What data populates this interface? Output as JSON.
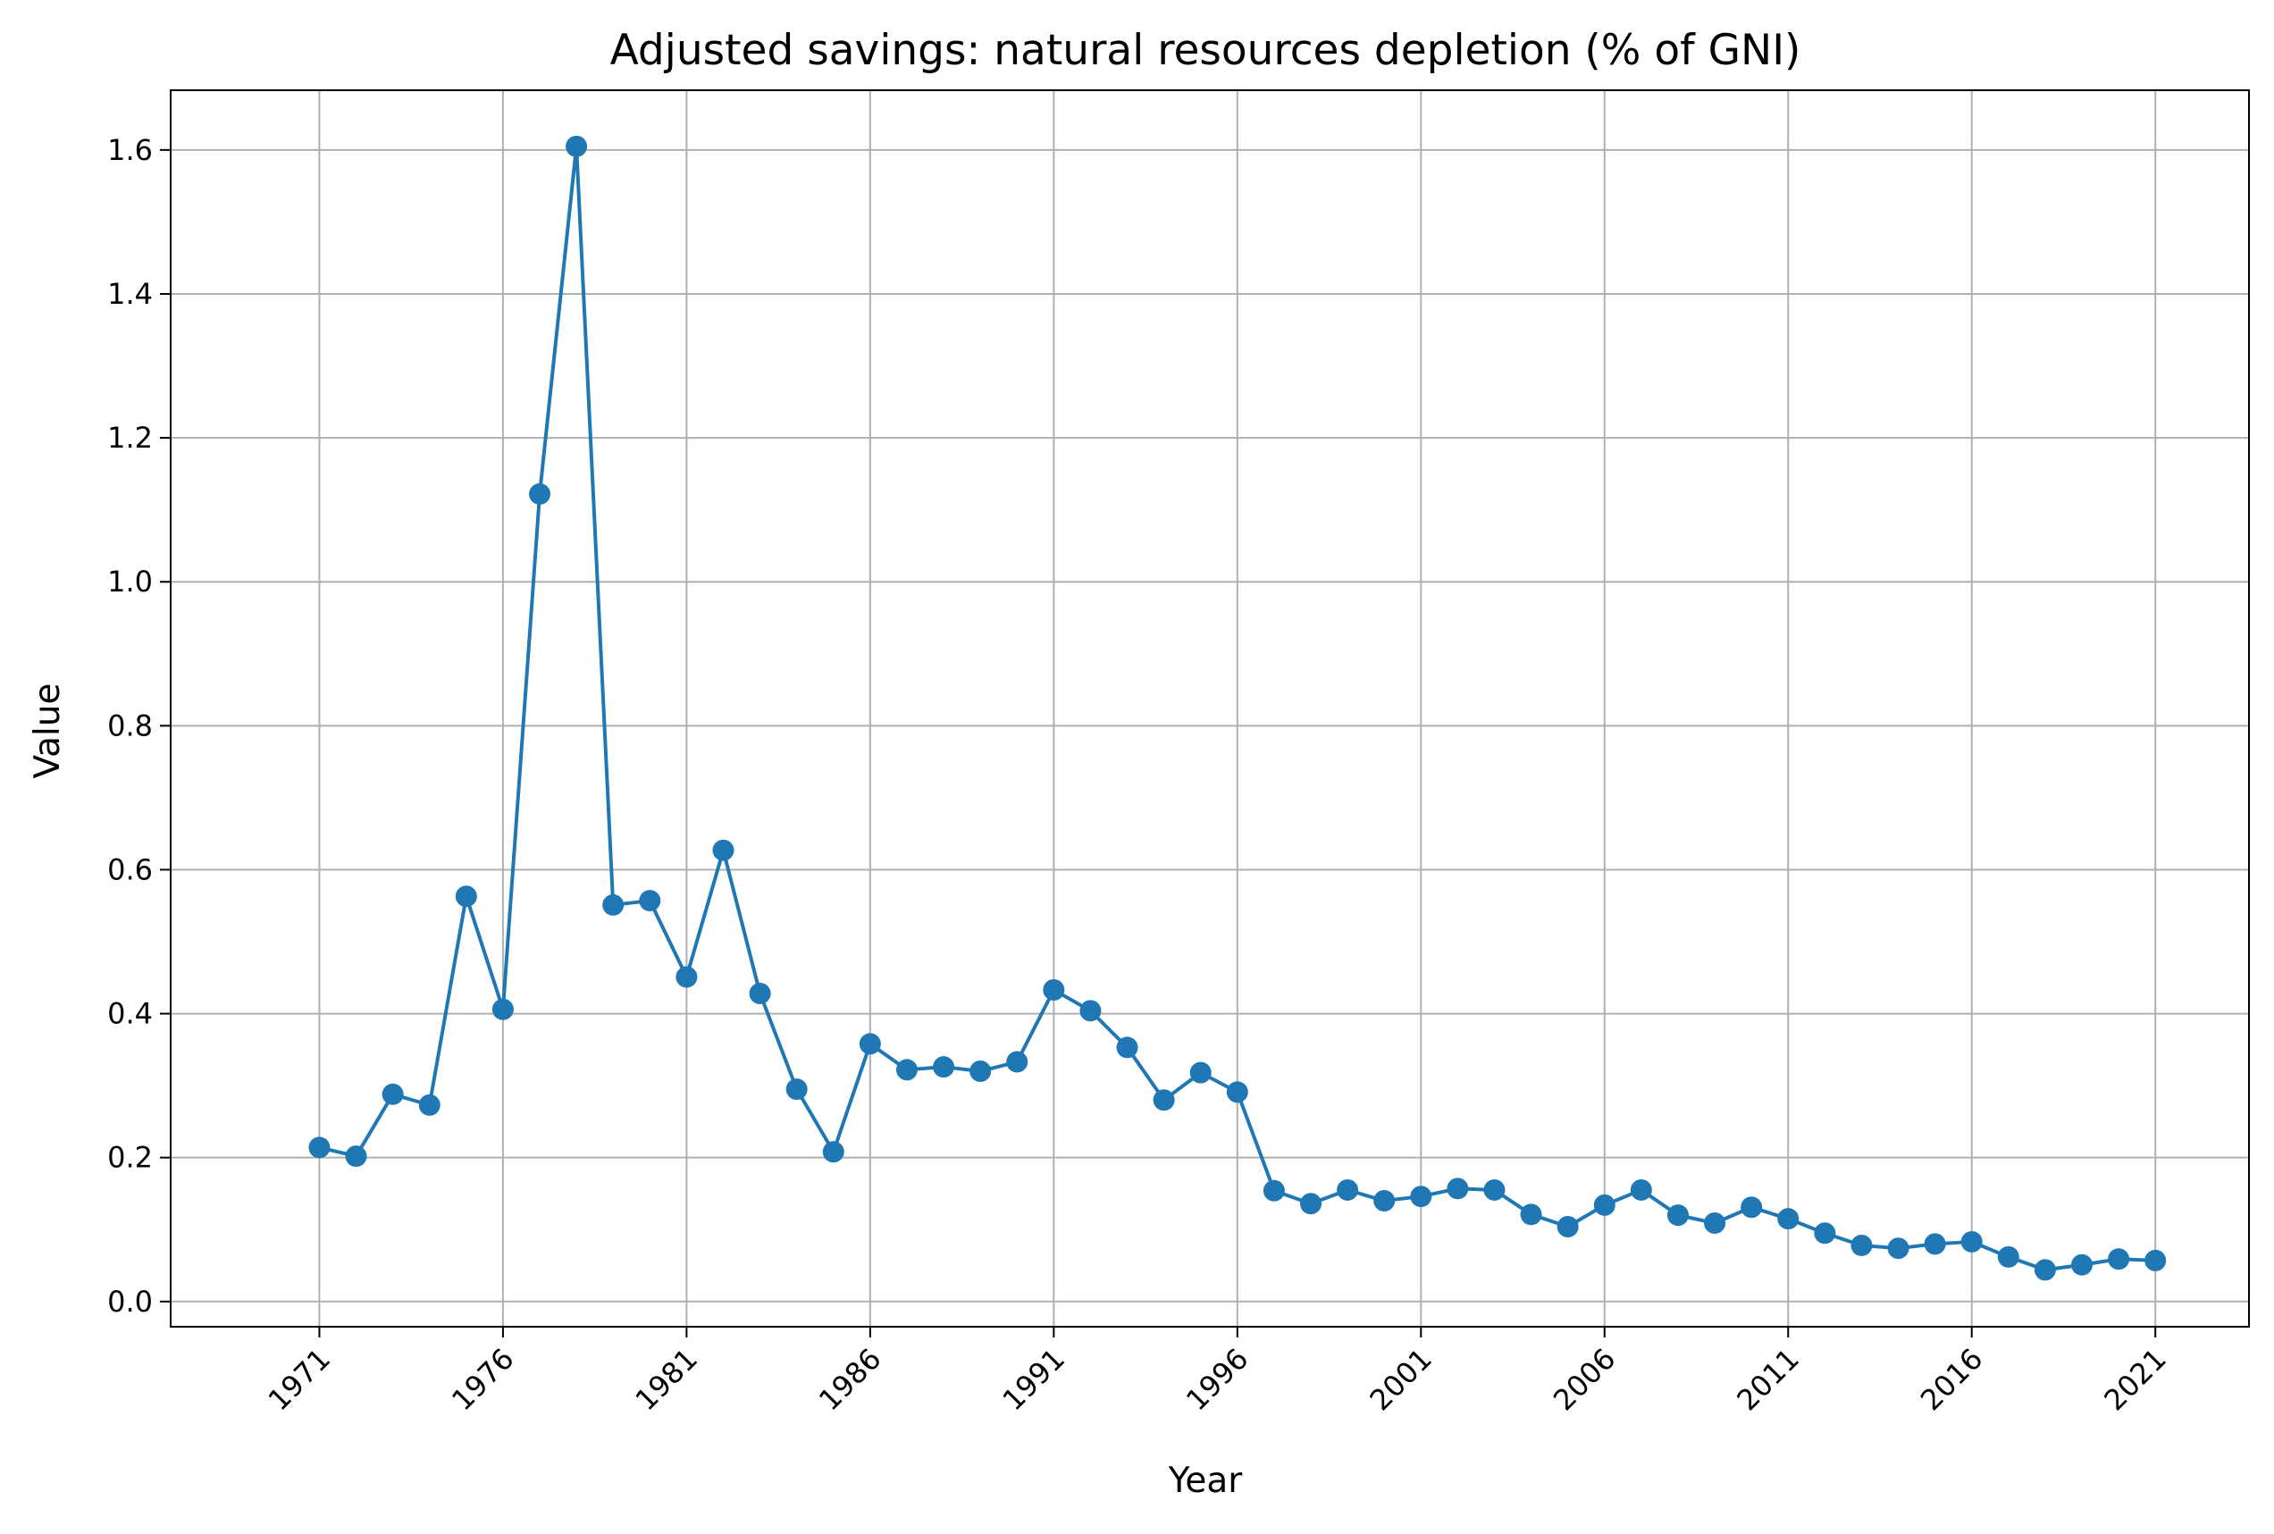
{
  "chart_data": {
    "type": "line",
    "title": "Adjusted savings: natural resources depletion (% of GNI)",
    "xlabel": "Year",
    "ylabel": "Value",
    "xlim": [
      1966.95,
      2023.55
    ],
    "ylim": [
      -0.035,
      1.683
    ],
    "x_ticks": [
      1971,
      1976,
      1981,
      1986,
      1991,
      1996,
      2001,
      2006,
      2011,
      2016,
      2021
    ],
    "y_ticks": [
      0.0,
      0.2,
      0.4,
      0.6,
      0.8,
      1.0,
      1.2,
      1.4,
      1.6
    ],
    "y_tick_labels": [
      "0.0",
      "0.2",
      "0.4",
      "0.6",
      "0.8",
      "1.0",
      "1.2",
      "1.4",
      "1.6"
    ],
    "grid": true,
    "marker": "circle",
    "colors": {
      "line": "#1f77b4",
      "grid": "#b0b0b0",
      "axes": "#000000"
    },
    "series": [
      {
        "x": [
          1971,
          1972,
          1973,
          1974,
          1975,
          1976,
          1977,
          1978,
          1979,
          1980,
          1981,
          1982,
          1983,
          1984,
          1985,
          1986,
          1987,
          1988,
          1989,
          1990,
          1991,
          1992,
          1993,
          1994,
          1995,
          1996,
          1997,
          1998,
          1999,
          2000,
          2001,
          2002,
          2003,
          2004,
          2005,
          2006,
          2007,
          2008,
          2009,
          2010,
          2011,
          2012,
          2013,
          2014,
          2015,
          2016,
          2017,
          2018,
          2019,
          2020,
          2021
        ],
        "values": [
          0.214,
          0.202,
          0.288,
          0.273,
          0.563,
          0.406,
          1.122,
          1.605,
          0.551,
          0.557,
          0.451,
          0.627,
          0.428,
          0.295,
          0.208,
          0.358,
          0.322,
          0.326,
          0.32,
          0.333,
          0.433,
          0.404,
          0.353,
          0.28,
          0.318,
          0.291,
          0.154,
          0.136,
          0.155,
          0.14,
          0.146,
          0.157,
          0.155,
          0.121,
          0.104,
          0.134,
          0.155,
          0.12,
          0.109,
          0.131,
          0.115,
          0.095,
          0.078,
          0.074,
          0.08,
          0.083,
          0.062,
          0.044,
          0.051,
          0.059,
          0.057
        ]
      }
    ]
  }
}
